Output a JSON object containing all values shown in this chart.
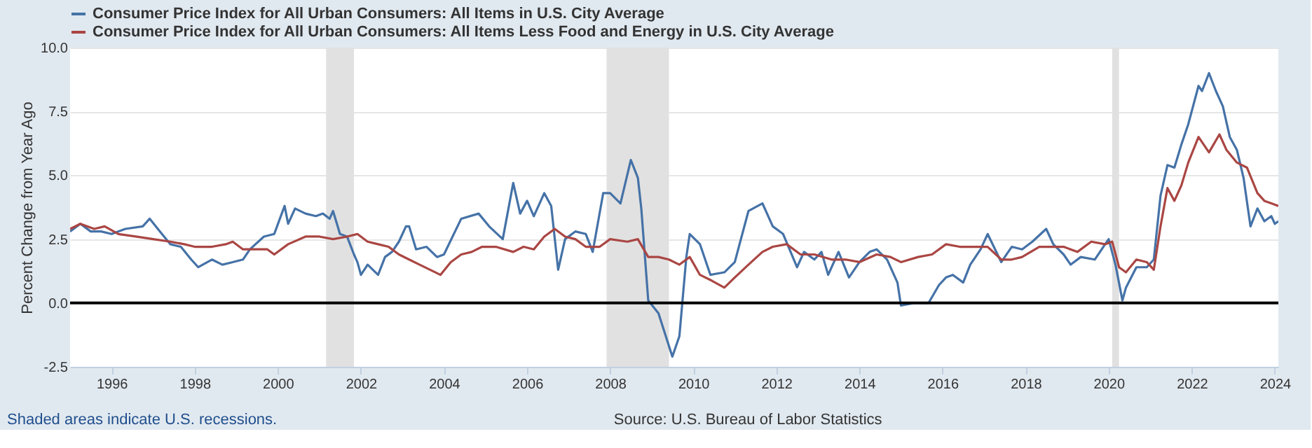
{
  "chart_data": {
    "type": "line",
    "ylabel": "Percent Change from Year Ago",
    "legend": "top",
    "grid": "y",
    "line_style": "solid",
    "marker": "none",
    "xlim": [
      "1995-01",
      "2024-02"
    ],
    "ylim": [
      -2.5,
      10
    ],
    "xticks": [
      "1996",
      "1998",
      "2000",
      "2002",
      "2004",
      "2006",
      "2008",
      "2010",
      "2012",
      "2014",
      "2016",
      "2018",
      "2020",
      "2022",
      "2024"
    ],
    "yticks": [
      {
        "value": -2.5,
        "label": "-2.5"
      },
      {
        "value": 0,
        "label": "0.0"
      },
      2.5,
      {
        "value": 5,
        "label": "5.0"
      },
      7.5,
      {
        "value": 10,
        "label": "10.0"
      }
    ],
    "bands": [
      {
        "axis": "x",
        "from": "2001-03",
        "to": "2001-11",
        "color": "#e1e1e1"
      },
      {
        "axis": "x",
        "from": "2007-12",
        "to": "2009-06",
        "color": "#e1e1e1"
      },
      {
        "axis": "x",
        "from": "2020-02",
        "to": "2020-04",
        "color": "#e1e1e1"
      }
    ],
    "ref_lines": [
      {
        "axis": "y",
        "value": 0,
        "label": null,
        "color": "#000000"
      }
    ],
    "annotations": [
      "Shaded areas indicate U.S. recessions.",
      "Source: U.S. Bureau of Labor Statistics"
    ],
    "series": [
      {
        "name": "Consumer Price Index for All Urban Consumers: All Items in U.S. City Average",
        "color": "#4572a7",
        "x": [
          "1995-01",
          "1995-04",
          "1995-07",
          "1995-10",
          "1996-01",
          "1996-05",
          "1996-10",
          "1996-12",
          "1997-03",
          "1997-06",
          "1997-09",
          "1997-12",
          "1998-02",
          "1998-06",
          "1998-09",
          "1998-12",
          "1999-03",
          "1999-05",
          "1999-09",
          "1999-12",
          "2000-03",
          "2000-04",
          "2000-06",
          "2000-09",
          "2000-12",
          "2001-02",
          "2001-04",
          "2001-05",
          "2001-07",
          "2001-09",
          "2001-11",
          "2001-12",
          "2002-01",
          "2002-03",
          "2002-06",
          "2002-08",
          "2002-10",
          "2002-12",
          "2003-02",
          "2003-03",
          "2003-05",
          "2003-08",
          "2003-11",
          "2004-01",
          "2004-06",
          "2004-11",
          "2005-02",
          "2005-06",
          "2005-09",
          "2005-11",
          "2006-01",
          "2006-03",
          "2006-06",
          "2006-08",
          "2006-10",
          "2006-12",
          "2007-03",
          "2007-06",
          "2007-08",
          "2007-11",
          "2008-01",
          "2008-04",
          "2008-07",
          "2008-09",
          "2008-10",
          "2008-12",
          "2009-03",
          "2009-07",
          "2009-09",
          "2009-11",
          "2009-12",
          "2010-03",
          "2010-06",
          "2010-10",
          "2011-01",
          "2011-05",
          "2011-09",
          "2011-12",
          "2012-03",
          "2012-07",
          "2012-09",
          "2012-12",
          "2013-02",
          "2013-04",
          "2013-07",
          "2013-10",
          "2014-01",
          "2014-04",
          "2014-06",
          "2014-09",
          "2014-12",
          "2015-01",
          "2015-05",
          "2015-09",
          "2015-12",
          "2016-02",
          "2016-04",
          "2016-07",
          "2016-09",
          "2016-12",
          "2017-02",
          "2017-06",
          "2017-09",
          "2017-12",
          "2018-03",
          "2018-07",
          "2018-09",
          "2018-12",
          "2019-02",
          "2019-05",
          "2019-09",
          "2019-12",
          "2020-01",
          "2020-03",
          "2020-05",
          "2020-06",
          "2020-09",
          "2020-12",
          "2021-02",
          "2021-04",
          "2021-06",
          "2021-08",
          "2021-10",
          "2021-12",
          "2022-03",
          "2022-04",
          "2022-06",
          "2022-08",
          "2022-10",
          "2022-12",
          "2023-02",
          "2023-04",
          "2023-06",
          "2023-08",
          "2023-10",
          "2023-12",
          "2024-01",
          "2024-02"
        ],
        "values": [
          2.8,
          3.1,
          2.8,
          2.8,
          2.7,
          2.9,
          3.0,
          3.3,
          2.8,
          2.3,
          2.2,
          1.7,
          1.4,
          1.7,
          1.5,
          1.6,
          1.7,
          2.1,
          2.6,
          2.7,
          3.8,
          3.1,
          3.7,
          3.5,
          3.4,
          3.5,
          3.3,
          3.6,
          2.7,
          2.6,
          1.9,
          1.6,
          1.1,
          1.5,
          1.1,
          1.8,
          2.0,
          2.4,
          3.0,
          3.0,
          2.1,
          2.2,
          1.8,
          1.9,
          3.3,
          3.5,
          3.0,
          2.5,
          4.7,
          3.5,
          4.0,
          3.4,
          4.3,
          3.8,
          1.3,
          2.5,
          2.8,
          2.7,
          2.0,
          4.3,
          4.3,
          3.9,
          5.6,
          4.9,
          3.7,
          0.1,
          -0.4,
          -2.1,
          -1.3,
          1.8,
          2.7,
          2.3,
          1.1,
          1.2,
          1.6,
          3.6,
          3.9,
          3.0,
          2.7,
          1.4,
          2.0,
          1.7,
          2.0,
          1.1,
          2.0,
          1.0,
          1.6,
          2.0,
          2.1,
          1.7,
          0.8,
          -0.1,
          0.0,
          0.0,
          0.7,
          1.0,
          1.1,
          0.8,
          1.5,
          2.1,
          2.7,
          1.6,
          2.2,
          2.1,
          2.4,
          2.9,
          2.3,
          1.9,
          1.5,
          1.8,
          1.7,
          2.3,
          2.5,
          1.5,
          0.1,
          0.6,
          1.4,
          1.4,
          1.7,
          4.2,
          5.4,
          5.3,
          6.2,
          7.0,
          8.5,
          8.3,
          9.0,
          8.3,
          7.7,
          6.5,
          6.0,
          4.9,
          3.0,
          3.7,
          3.2,
          3.4,
          3.1,
          3.2
        ]
      },
      {
        "name": "Consumer Price Index for All Urban Consumers: All Items Less Food and Energy in U.S. City Average",
        "color": "#aa4643",
        "x": [
          "1995-01",
          "1995-04",
          "1995-08",
          "1995-11",
          "1996-03",
          "1996-08",
          "1997-01",
          "1997-06",
          "1997-10",
          "1998-01",
          "1998-06",
          "1998-10",
          "1998-12",
          "1999-03",
          "1999-06",
          "1999-10",
          "1999-12",
          "2000-04",
          "2000-09",
          "2001-01",
          "2001-05",
          "2001-09",
          "2001-12",
          "2002-03",
          "2002-06",
          "2002-09",
          "2002-12",
          "2003-03",
          "2003-06",
          "2003-09",
          "2003-12",
          "2004-03",
          "2004-06",
          "2004-09",
          "2004-12",
          "2005-04",
          "2005-09",
          "2005-12",
          "2006-03",
          "2006-06",
          "2006-09",
          "2006-12",
          "2007-03",
          "2007-06",
          "2007-10",
          "2008-01",
          "2008-06",
          "2008-09",
          "2008-12",
          "2009-03",
          "2009-06",
          "2009-09",
          "2009-12",
          "2010-03",
          "2010-06",
          "2010-10",
          "2011-01",
          "2011-05",
          "2011-09",
          "2011-12",
          "2012-04",
          "2012-08",
          "2012-12",
          "2013-05",
          "2013-09",
          "2014-01",
          "2014-06",
          "2014-10",
          "2015-01",
          "2015-06",
          "2015-10",
          "2016-02",
          "2016-06",
          "2016-09",
          "2016-12",
          "2017-02",
          "2017-06",
          "2017-09",
          "2017-12",
          "2018-05",
          "2018-09",
          "2018-12",
          "2019-04",
          "2019-08",
          "2019-12",
          "2020-02",
          "2020-04",
          "2020-06",
          "2020-09",
          "2020-12",
          "2021-02",
          "2021-04",
          "2021-06",
          "2021-08",
          "2021-10",
          "2021-12",
          "2022-03",
          "2022-06",
          "2022-09",
          "2022-11",
          "2023-02",
          "2023-05",
          "2023-08",
          "2023-10",
          "2023-12",
          "2024-02"
        ],
        "values": [
          2.9,
          3.1,
          2.9,
          3.0,
          2.7,
          2.6,
          2.5,
          2.4,
          2.3,
          2.2,
          2.2,
          2.3,
          2.4,
          2.1,
          2.1,
          2.1,
          1.9,
          2.3,
          2.6,
          2.6,
          2.5,
          2.6,
          2.7,
          2.4,
          2.3,
          2.2,
          1.9,
          1.7,
          1.5,
          1.3,
          1.1,
          1.6,
          1.9,
          2.0,
          2.2,
          2.2,
          2.0,
          2.2,
          2.1,
          2.6,
          2.9,
          2.6,
          2.5,
          2.2,
          2.2,
          2.5,
          2.4,
          2.5,
          1.8,
          1.8,
          1.7,
          1.5,
          1.8,
          1.1,
          0.9,
          0.6,
          1.0,
          1.5,
          2.0,
          2.2,
          2.3,
          1.9,
          1.9,
          1.7,
          1.7,
          1.6,
          1.9,
          1.8,
          1.6,
          1.8,
          1.9,
          2.3,
          2.2,
          2.2,
          2.2,
          2.2,
          1.7,
          1.7,
          1.8,
          2.2,
          2.2,
          2.2,
          2.0,
          2.4,
          2.3,
          2.4,
          1.4,
          1.2,
          1.7,
          1.6,
          1.3,
          3.0,
          4.5,
          4.0,
          4.6,
          5.5,
          6.5,
          5.9,
          6.6,
          6.0,
          5.5,
          5.3,
          4.3,
          4.0,
          3.9,
          3.8
        ]
      }
    ]
  }
}
